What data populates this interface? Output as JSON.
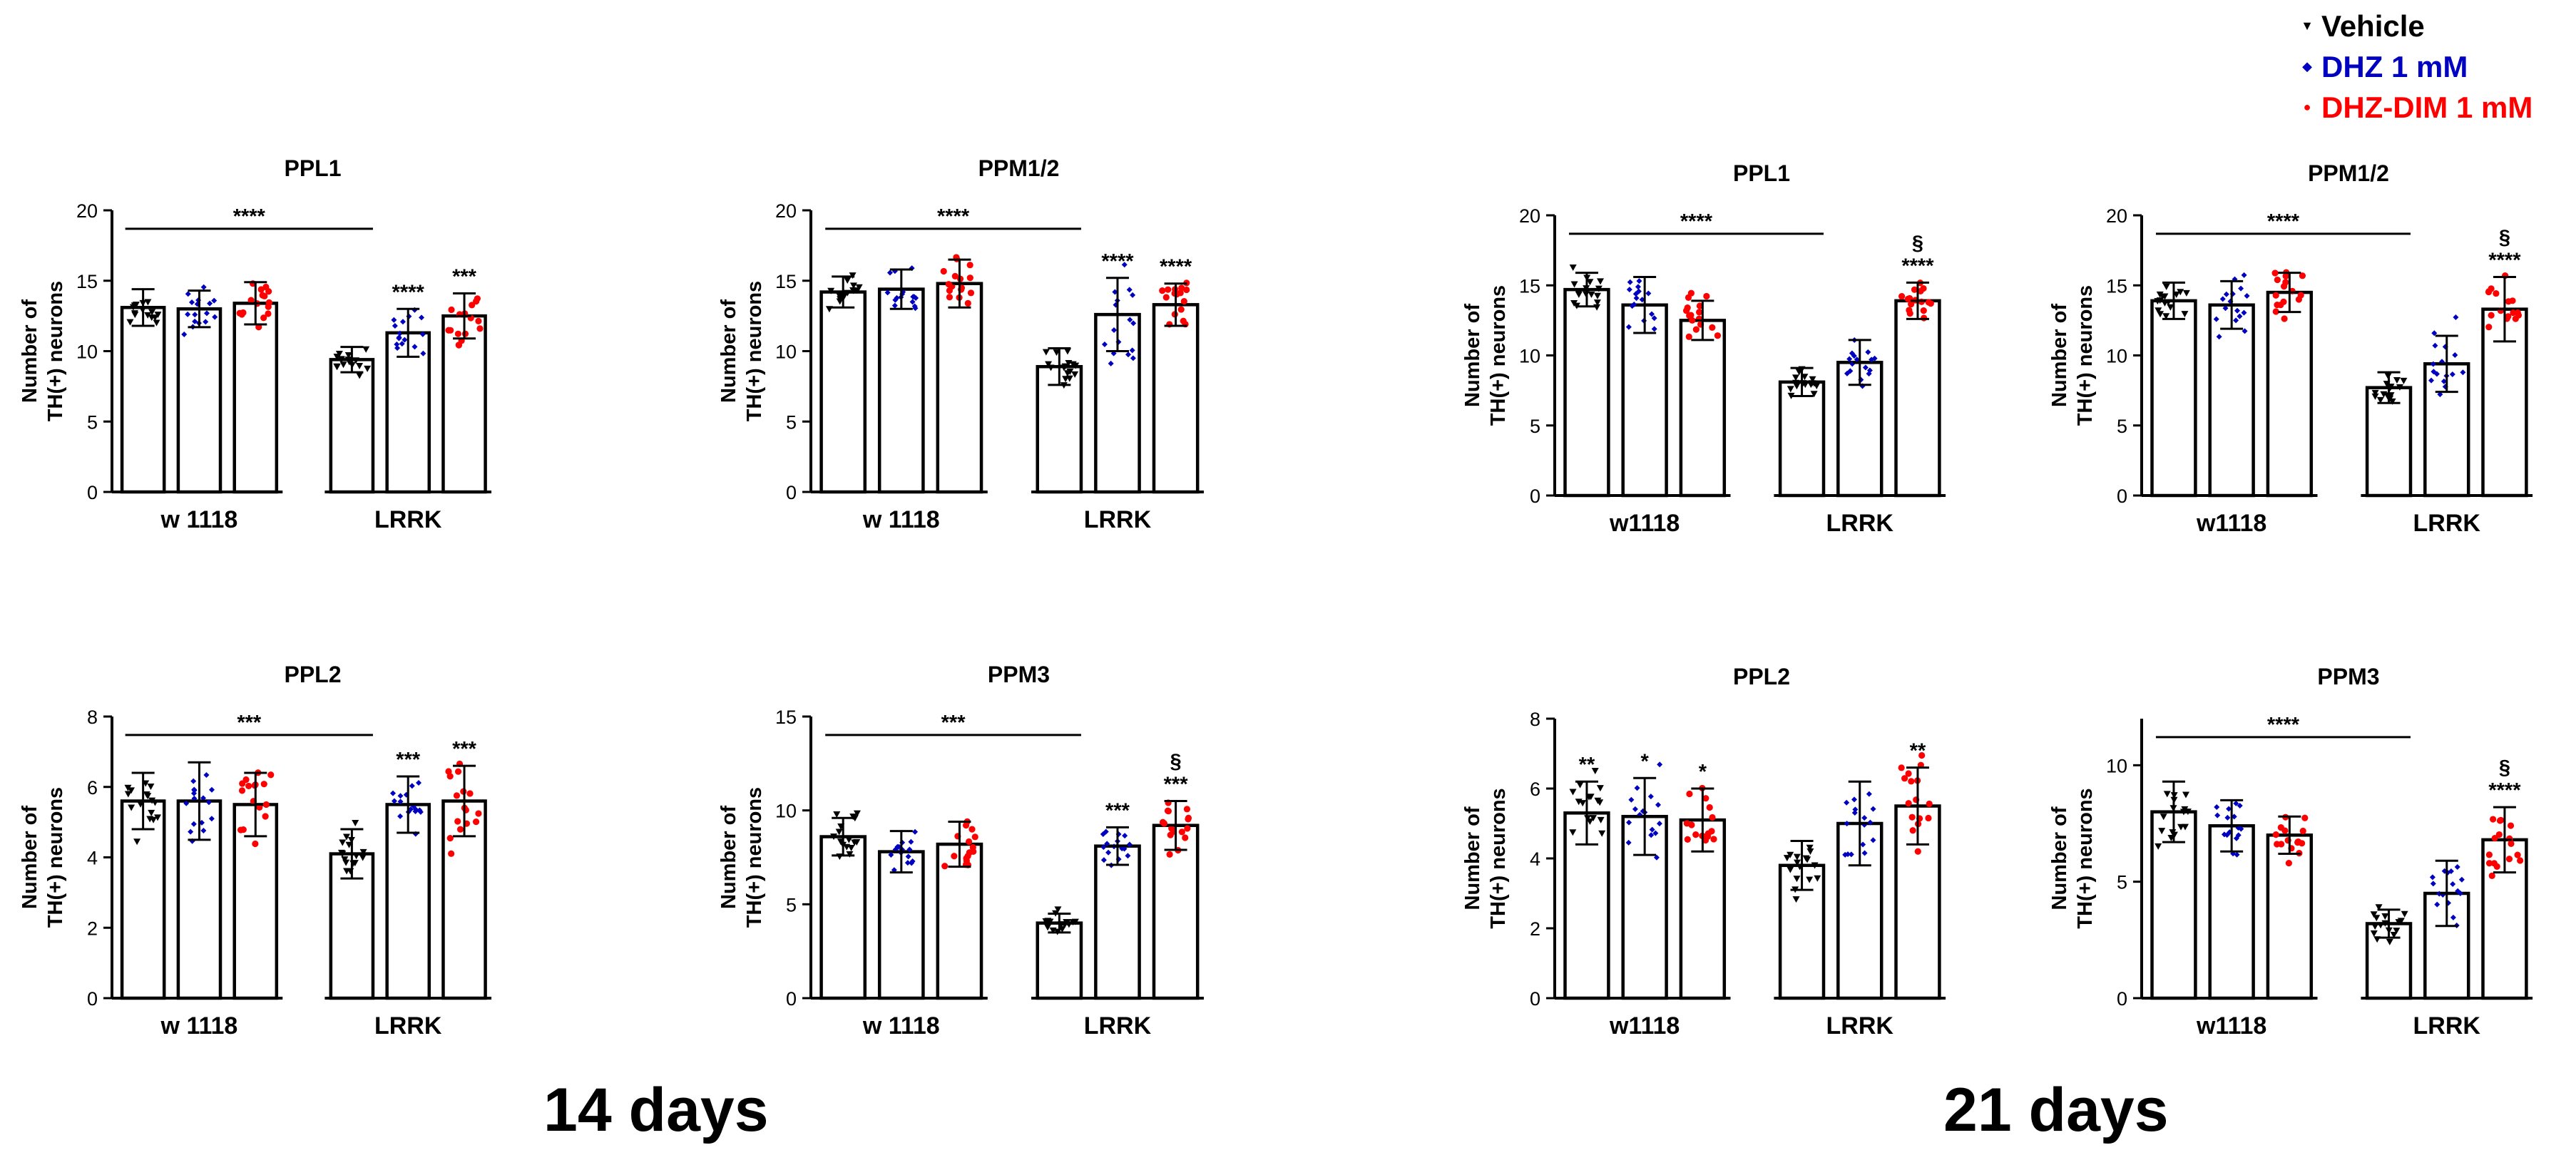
{
  "legend": [
    {
      "label": "Vehicle",
      "color": "#000000",
      "marker": "triangle-down"
    },
    {
      "label": "DHZ 1 mM",
      "color": "#0000c0",
      "marker": "diamond"
    },
    {
      "label": "DHZ-DIM 1 mM",
      "color": "#ff0000",
      "marker": "circle"
    }
  ],
  "sections": [
    "14 days",
    "21 days"
  ],
  "chart_data": [
    {
      "type": "bar",
      "title": "PPL1",
      "section": "14 days",
      "ylabel": "Number of TH(+) neurons",
      "ylim": [
        0,
        20
      ],
      "yticks": [
        0,
        5,
        10,
        15,
        20
      ],
      "categories": [
        "w 1118",
        "LRRK"
      ],
      "series": [
        {
          "name": "Vehicle",
          "values": [
            13.1,
            9.4
          ],
          "sd": [
            1.3,
            0.9
          ]
        },
        {
          "name": "DHZ 1 mM",
          "values": [
            13.0,
            11.3
          ],
          "sd": [
            1.3,
            1.7
          ]
        },
        {
          "name": "DHZ-DIM 1 mM",
          "values": [
            13.4,
            12.5
          ],
          "sd": [
            1.5,
            1.6
          ]
        }
      ],
      "significance": {
        "bracket": "****",
        "markers": [
          [
            "",
            "",
            ""
          ],
          [
            "",
            "****",
            "***"
          ]
        ]
      }
    },
    {
      "type": "bar",
      "title": "PPM1/2",
      "section": "14 days",
      "ylabel": "Number of TH(+) neurons",
      "ylim": [
        0,
        20
      ],
      "yticks": [
        0,
        5,
        10,
        15,
        20
      ],
      "categories": [
        "w 1118",
        "LRRK"
      ],
      "series": [
        {
          "name": "Vehicle",
          "values": [
            14.2,
            8.9
          ],
          "sd": [
            1.1,
            1.3
          ]
        },
        {
          "name": "DHZ 1 mM",
          "values": [
            14.4,
            12.6
          ],
          "sd": [
            1.4,
            2.6
          ]
        },
        {
          "name": "DHZ-DIM 1 mM",
          "values": [
            14.8,
            13.3
          ],
          "sd": [
            1.7,
            1.5
          ]
        }
      ],
      "significance": {
        "bracket": "****",
        "markers": [
          [
            "",
            "",
            ""
          ],
          [
            "",
            "****",
            "****"
          ]
        ]
      }
    },
    {
      "type": "bar",
      "title": "PPL2",
      "section": "14 days",
      "ylabel": "Number of TH(+) neurons",
      "ylim": [
        0,
        8
      ],
      "yticks": [
        0,
        2,
        4,
        6,
        8
      ],
      "categories": [
        "w 1118",
        "LRRK"
      ],
      "series": [
        {
          "name": "Vehicle",
          "values": [
            5.6,
            4.1
          ],
          "sd": [
            0.8,
            0.7
          ]
        },
        {
          "name": "DHZ 1 mM",
          "values": [
            5.6,
            5.5
          ],
          "sd": [
            1.1,
            0.8
          ]
        },
        {
          "name": "DHZ-DIM 1 mM",
          "values": [
            5.5,
            5.6
          ],
          "sd": [
            0.9,
            1.0
          ]
        }
      ],
      "significance": {
        "bracket": "***",
        "markers": [
          [
            "",
            "",
            ""
          ],
          [
            "",
            "***",
            "***"
          ]
        ]
      }
    },
    {
      "type": "bar",
      "title": "PPM3",
      "section": "14 days",
      "ylabel": "Number of TH(+) neurons",
      "ylim": [
        0,
        15
      ],
      "yticks": [
        0,
        5,
        10,
        15
      ],
      "categories": [
        "w 1118",
        "LRRK"
      ],
      "series": [
        {
          "name": "Vehicle",
          "values": [
            8.6,
            4.0
          ],
          "sd": [
            1.0,
            0.5
          ]
        },
        {
          "name": "DHZ 1 mM",
          "values": [
            7.8,
            8.1
          ],
          "sd": [
            1.1,
            1.0
          ]
        },
        {
          "name": "DHZ-DIM 1 mM",
          "values": [
            8.2,
            9.2
          ],
          "sd": [
            1.2,
            1.3
          ]
        }
      ],
      "significance": {
        "bracket": "***",
        "markers": [
          [
            "",
            "",
            ""
          ],
          [
            "",
            "***",
            "§\n***"
          ]
        ]
      }
    },
    {
      "type": "bar",
      "title": "PPL1",
      "section": "21 days",
      "ylabel": "Number of TH(+) neurons",
      "ylim": [
        0,
        20
      ],
      "yticks": [
        0,
        5,
        10,
        15,
        20
      ],
      "categories": [
        "w1118",
        "LRRK"
      ],
      "series": [
        {
          "name": "Vehicle",
          "values": [
            14.7,
            8.1
          ],
          "sd": [
            1.2,
            1.0
          ]
        },
        {
          "name": "DHZ 1 mM",
          "values": [
            13.6,
            9.5
          ],
          "sd": [
            2.0,
            1.6
          ]
        },
        {
          "name": "DHZ-DIM 1 mM",
          "values": [
            12.5,
            13.9
          ],
          "sd": [
            1.4,
            1.3
          ]
        }
      ],
      "significance": {
        "bracket": "****",
        "markers": [
          [
            "",
            "",
            ""
          ],
          [
            "",
            "",
            "§\n****"
          ]
        ]
      }
    },
    {
      "type": "bar",
      "title": "PPM1/2",
      "section": "21 days",
      "ylabel": "Number of TH(+) neurons",
      "ylim": [
        0,
        20
      ],
      "yticks": [
        0,
        5,
        10,
        15,
        20
      ],
      "categories": [
        "w1118",
        "LRRK"
      ],
      "series": [
        {
          "name": "Vehicle",
          "values": [
            13.9,
            7.7
          ],
          "sd": [
            1.3,
            1.1
          ]
        },
        {
          "name": "DHZ 1 mM",
          "values": [
            13.6,
            9.4
          ],
          "sd": [
            1.7,
            2.0
          ]
        },
        {
          "name": "DHZ-DIM 1 mM",
          "values": [
            14.5,
            13.3
          ],
          "sd": [
            1.4,
            2.3
          ]
        }
      ],
      "significance": {
        "bracket": "****",
        "markers": [
          [
            "",
            "",
            ""
          ],
          [
            "",
            "",
            "§\n****"
          ]
        ]
      }
    },
    {
      "type": "bar",
      "title": "PPL2",
      "section": "21 days",
      "ylabel": "Number of TH(+) neurons",
      "ylim": [
        0,
        8
      ],
      "yticks": [
        0,
        2,
        4,
        6,
        8
      ],
      "categories": [
        "w1118",
        "LRRK"
      ],
      "series": [
        {
          "name": "Vehicle",
          "values": [
            5.3,
            3.8
          ],
          "sd": [
            0.9,
            0.7
          ]
        },
        {
          "name": "DHZ 1 mM",
          "values": [
            5.2,
            5.0
          ],
          "sd": [
            1.1,
            1.2
          ]
        },
        {
          "name": "DHZ-DIM 1 mM",
          "values": [
            5.1,
            5.5
          ],
          "sd": [
            0.9,
            1.1
          ]
        }
      ],
      "significance": {
        "bracket": "",
        "markers": [
          [
            "**",
            "*",
            "*"
          ],
          [
            "",
            "",
            "**"
          ]
        ]
      }
    },
    {
      "type": "bar",
      "title": "PPM3",
      "section": "21 days",
      "ylabel": "Number of TH(+) neurons",
      "ylim": [
        0,
        12
      ],
      "yticks": [
        0,
        5,
        10
      ],
      "categories": [
        "w1118",
        "LRRK"
      ],
      "series": [
        {
          "name": "Vehicle",
          "values": [
            8.0,
            3.2
          ],
          "sd": [
            1.3,
            0.6
          ]
        },
        {
          "name": "DHZ 1 mM",
          "values": [
            7.4,
            4.5
          ],
          "sd": [
            1.1,
            1.4
          ]
        },
        {
          "name": "DHZ-DIM 1 mM",
          "values": [
            7.0,
            6.8
          ],
          "sd": [
            0.8,
            1.4
          ]
        }
      ],
      "significance": {
        "bracket": "****",
        "markers": [
          [
            "",
            "",
            ""
          ],
          [
            "",
            "",
            "§\n****"
          ]
        ]
      }
    }
  ]
}
